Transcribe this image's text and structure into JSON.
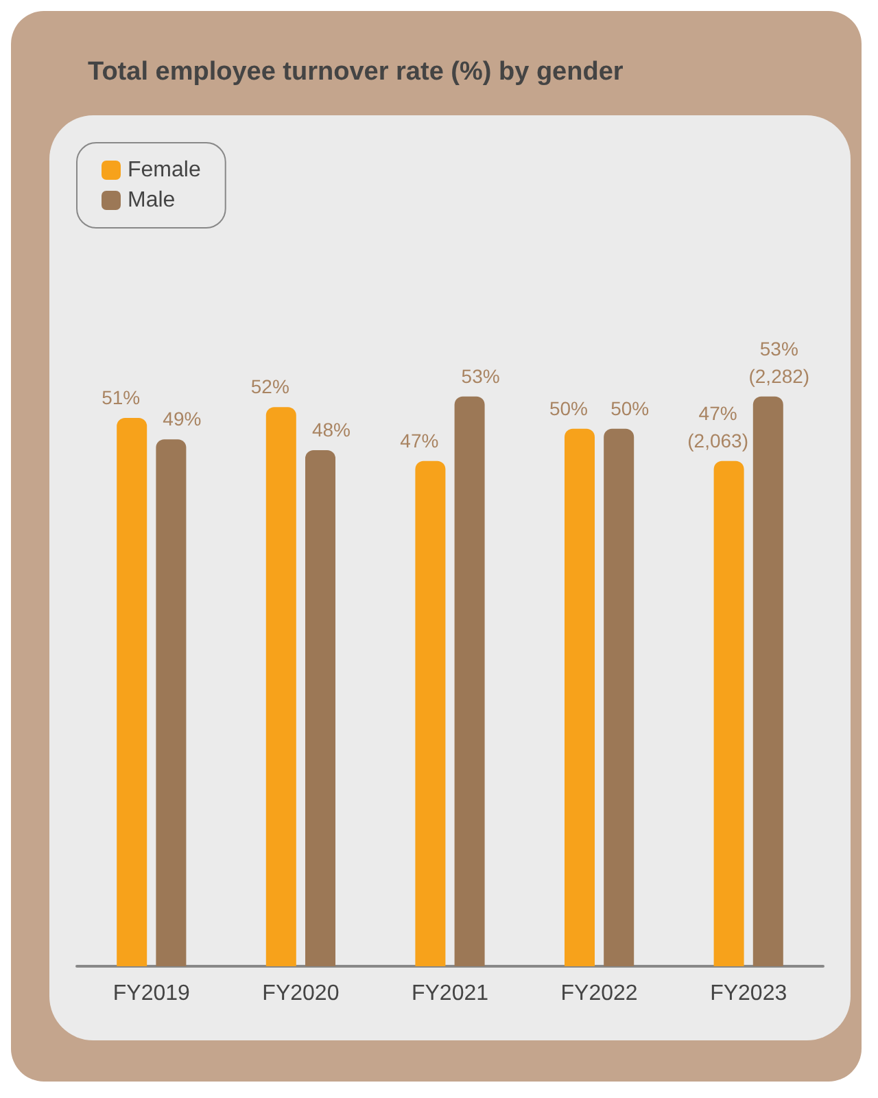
{
  "chart_data": {
    "type": "bar",
    "title": "Total employee turnover rate (%) by gender",
    "categories": [
      "FY2019",
      "FY2020",
      "FY2021",
      "FY2022",
      "FY2023"
    ],
    "series": [
      {
        "name": "Female",
        "color": "#f7a21b",
        "values": [
          51,
          52,
          47,
          50,
          47
        ],
        "value_labels": [
          "51%",
          "52%",
          "47%",
          "50%",
          "47%\n(2,063)"
        ]
      },
      {
        "name": "Male",
        "color": "#9c7856",
        "values": [
          49,
          48,
          53,
          50,
          53
        ],
        "value_labels": [
          "49%",
          "48%",
          "53%",
          "50%",
          "53%\n(2,282)"
        ]
      }
    ],
    "legend": "top left"
  }
}
